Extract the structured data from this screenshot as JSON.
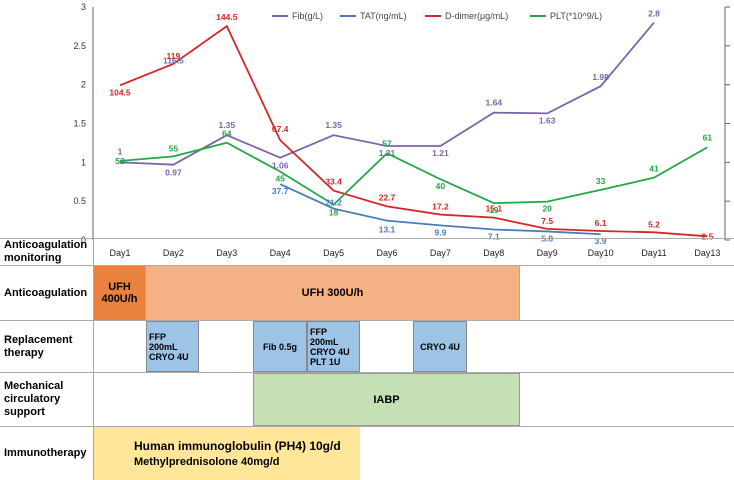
{
  "chart_data": {
    "type": "line",
    "categories": [
      "Day1",
      "Day2",
      "Day3",
      "Day4",
      "Day5",
      "Day6",
      "Day7",
      "Day8",
      "Day9",
      "Day10",
      "Day11",
      "Day13"
    ],
    "ylim_left": [
      0,
      3
    ],
    "yticks_left": [
      "0",
      "0.5",
      "1",
      "1.5",
      "2",
      "2.5",
      "3"
    ],
    "grid": false,
    "legend_position": "top-right",
    "series": [
      {
        "name": "Fib(g/L)",
        "color": "#7B64A8",
        "values": [
          1,
          0.97,
          1.35,
          1.06,
          1.35,
          1.21,
          1.21,
          1.64,
          1.63,
          1.98,
          2.8,
          null
        ],
        "labels": [
          "1",
          "0.97",
          "1.35",
          "1.06",
          "1.35",
          "1.21",
          "1.21",
          "1.64",
          "1.63",
          "1.98",
          "2.8",
          ""
        ]
      },
      {
        "name": "TAT(ng/mL)",
        "color": "#4A7EBB",
        "values": [
          null,
          116.5,
          null,
          37.7,
          21.2,
          13.1,
          9.9,
          7.1,
          5.8,
          3.9,
          null,
          null
        ],
        "labels": [
          "",
          "116.5",
          "",
          "37.7",
          "21.2",
          "13.1",
          "9.9",
          "7.1",
          "5.8",
          "3.9",
          "",
          ""
        ]
      },
      {
        "name": "D-dimer(μg/mL)",
        "color": "#D62728",
        "values": [
          104.5,
          119,
          144.5,
          67.4,
          33.4,
          22.7,
          17.2,
          15.1,
          7.5,
          6.1,
          5.2,
          2.5
        ],
        "labels": [
          "104.5",
          "119",
          "144.5",
          "67.4",
          "33.4",
          "22.7",
          "17.2",
          "15.1",
          "7.5",
          "6.1",
          "5.2",
          "2.5"
        ]
      },
      {
        "name": "PLT(*10^9/L)",
        "color": "#22A845",
        "values": [
          52,
          55,
          64,
          45,
          18,
          57,
          40,
          19,
          20,
          33,
          41,
          61
        ],
        "labels": [
          "52",
          "55",
          "64",
          "45",
          "18",
          "57",
          "40",
          "19",
          "20",
          "33",
          "41",
          "61"
        ]
      }
    ]
  },
  "table": {
    "rows": {
      "monitoring": "Anticoagulation monitoring",
      "anticoagulation": "Anticoagulation",
      "replacement": "Replacement therapy",
      "mcs": "Mechanical circulatory support",
      "immuno": "Immunotherapy"
    },
    "blocks": {
      "ufh400": "UFH 400U/h",
      "ufh300": "UFH 300U/h",
      "ffp1": "FFP 200mL CRYO 4U",
      "fib": "Fib 0.5g",
      "ffp2": "FFP 200mL CRYO 4U PLT 1U",
      "cryo": "CRYO 4U",
      "iabp": "IABP",
      "immuno1": "Human immunoglobulin (PH4) 10g/d",
      "immuno2": "Methylprednisolone 40mg/d"
    },
    "colors": {
      "ufh400": "#E8823E",
      "ufh300": "#F4B183",
      "replacement": "#9DC3E6",
      "iabp": "#C5E0B4",
      "immuno": "#FFE699"
    }
  }
}
